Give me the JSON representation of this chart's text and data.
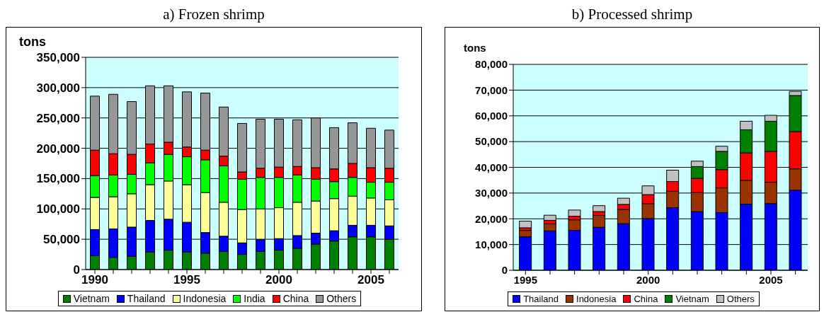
{
  "chart_data": [
    {
      "type": "bar",
      "title": "a) Frozen shrimp",
      "ylabel": "tons",
      "stacked": true,
      "grid": "y",
      "legend": "bottom",
      "categories": [
        "1990",
        null,
        null,
        null,
        null,
        "1995",
        null,
        null,
        null,
        null,
        "2000",
        null,
        null,
        null,
        null,
        "2005",
        null
      ],
      "series": [
        {
          "name": "Vietnam",
          "color": "#007f00",
          "values": [
            23000,
            20000,
            22000,
            29000,
            32000,
            29000,
            27000,
            30000,
            25000,
            30000,
            32000,
            35000,
            42000,
            47000,
            54000,
            54000,
            50000
          ]
        },
        {
          "name": "Thailand",
          "color": "#0000ff",
          "values": [
            43000,
            47000,
            48000,
            52000,
            51000,
            49000,
            34000,
            25000,
            19000,
            20000,
            19000,
            21000,
            18000,
            17000,
            19000,
            19000,
            22000
          ]
        },
        {
          "name": "Indonesia",
          "color": "#ffff99",
          "values": [
            53000,
            53000,
            55000,
            59000,
            63000,
            62000,
            66000,
            56000,
            55000,
            50000,
            51000,
            55000,
            53000,
            53000,
            48000,
            45000,
            43000
          ]
        },
        {
          "name": "India",
          "color": "#00ff00",
          "values": [
            36000,
            36000,
            32000,
            36000,
            44000,
            46000,
            54000,
            60000,
            50000,
            52000,
            50000,
            45000,
            36000,
            28000,
            31000,
            26000,
            29000
          ]
        },
        {
          "name": "China",
          "color": "#ff0000",
          "values": [
            42000,
            35000,
            33000,
            31000,
            20000,
            16000,
            16000,
            16000,
            12000,
            15000,
            17000,
            14000,
            19000,
            21000,
            23000,
            24000,
            23000
          ]
        },
        {
          "name": "Others",
          "color": "#969696",
          "values": [
            89000,
            98000,
            87000,
            96000,
            93000,
            91000,
            94000,
            81000,
            80000,
            81000,
            79000,
            77000,
            82000,
            68000,
            67000,
            65000,
            63000
          ]
        }
      ],
      "ylim": [
        0,
        350000
      ],
      "yticks": [
        0,
        {
          "value": 50000,
          "label": "50,000"
        },
        {
          "value": 100000,
          "label": "100,000"
        },
        {
          "value": 150000,
          "label": "150,000"
        },
        {
          "value": 200000,
          "label": "200,000"
        },
        {
          "value": 250000,
          "label": "250,000"
        },
        {
          "value": 300000,
          "label": "300,000"
        },
        {
          "value": 350000,
          "label": "350,000"
        }
      ]
    },
    {
      "type": "bar",
      "title": "b) Processed shrimp",
      "ylabel": "tons",
      "stacked": true,
      "grid": "y",
      "legend": "bottom",
      "categories": [
        "1995",
        null,
        null,
        null,
        null,
        "2000",
        null,
        null,
        null,
        null,
        "2005",
        null
      ],
      "series": [
        {
          "name": "Thailand",
          "color": "#0000ff",
          "values": [
            13000,
            15300,
            15500,
            16700,
            18100,
            20100,
            24300,
            22800,
            22400,
            25700,
            25900,
            31100
          ]
        },
        {
          "name": "Indonesia",
          "color": "#993300",
          "values": [
            2500,
            2700,
            4100,
            4600,
            5500,
            5800,
            6400,
            7400,
            9600,
            9200,
            8300,
            8300
          ]
        },
        {
          "name": "China",
          "color": "#ff0000",
          "values": [
            1000,
            1400,
            1400,
            1500,
            2000,
            3500,
            3800,
            5500,
            7100,
            10700,
            12000,
            14500
          ]
        },
        {
          "name": "Vietnam",
          "color": "#008000",
          "values": [
            null,
            null,
            null,
            null,
            null,
            null,
            null,
            4600,
            7100,
            9000,
            11700,
            14000
          ]
        },
        {
          "name": "Others",
          "color": "#c0c0c0",
          "values": [
            2600,
            2000,
            2400,
            2300,
            2400,
            3400,
            4400,
            2100,
            2000,
            3300,
            2300,
            1600
          ]
        }
      ],
      "ylim": [
        0,
        80000
      ],
      "yticks": [
        0,
        {
          "value": 10000,
          "label": "10,000"
        },
        {
          "value": 20000,
          "label": "20,000"
        },
        {
          "value": 30000,
          "label": "30,000"
        },
        {
          "value": 40000,
          "label": "40,000"
        },
        {
          "value": 50000,
          "label": "50,000"
        },
        {
          "value": 60000,
          "label": "60,000"
        },
        {
          "value": 70000,
          "label": "70,000"
        },
        {
          "value": 80000,
          "label": "80,000"
        }
      ]
    }
  ]
}
